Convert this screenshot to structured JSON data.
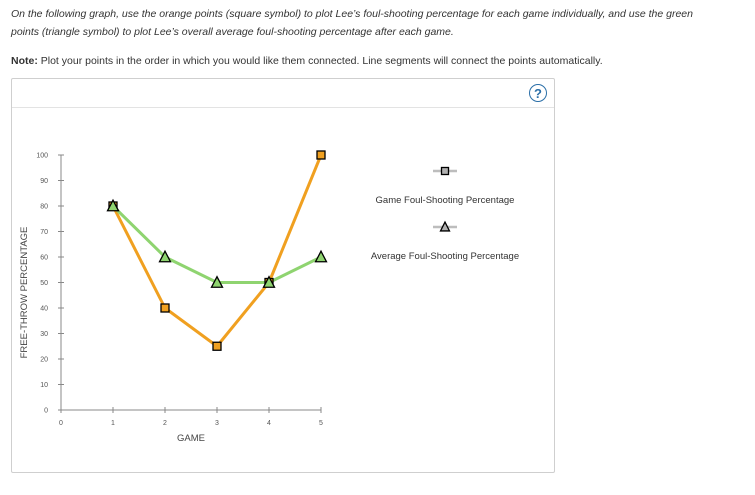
{
  "instructions": {
    "line1": "On the following graph, use the orange points (square symbol) to plot Lee’s foul-shooting percentage for each game individually, and use the green",
    "line2": "points (triangle symbol) to plot Lee’s overall average foul-shooting percentage after each game."
  },
  "note": {
    "label": "Note:",
    "text": " Plot your points in the order in which you would like them connected. Line segments will connect the points automatically."
  },
  "help_icon": "question-circle-icon",
  "help_symbol": "?",
  "colors": {
    "game": "#f0a020",
    "average": "#8fd470",
    "axis": "#888888",
    "help": "#2b6fa8"
  },
  "chart_data": {
    "type": "line",
    "title": "",
    "xlabel": "GAME",
    "ylabel": "FREE-THROW PERCENTAGE",
    "xlim": [
      0,
      5
    ],
    "ylim": [
      0,
      100
    ],
    "x_ticks": [
      "0",
      "1",
      "2",
      "3",
      "4",
      "5"
    ],
    "y_ticks": [
      "0",
      "10",
      "20",
      "30",
      "40",
      "50",
      "60",
      "70",
      "80",
      "90",
      "100"
    ],
    "grid": false,
    "legend_position": "right",
    "series": [
      {
        "name": "Game Foul-Shooting Percentage",
        "marker": "square",
        "color": "#f0a020",
        "x": [
          1,
          2,
          3,
          4,
          5
        ],
        "y": [
          80,
          40,
          25,
          50,
          100
        ]
      },
      {
        "name": "Average Foul-Shooting Percentage",
        "marker": "triangle",
        "color": "#8fd470",
        "x": [
          1,
          2,
          3,
          4,
          5
        ],
        "y": [
          80,
          60,
          50,
          50,
          60
        ]
      }
    ]
  }
}
